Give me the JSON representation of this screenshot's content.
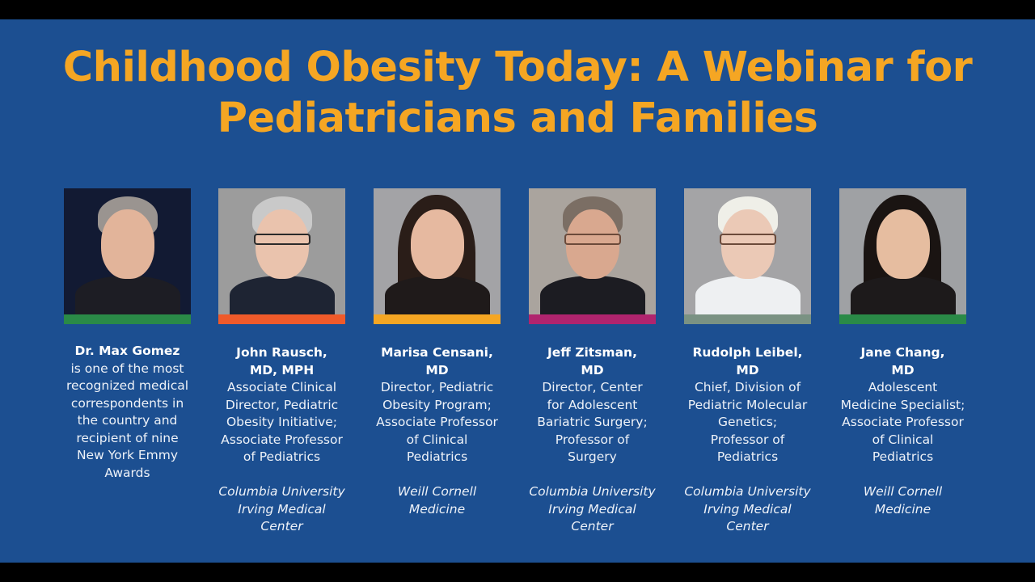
{
  "title": {
    "line1": "Childhood Obesity Today: A Webinar for",
    "line2": "Pediatricians and Families"
  },
  "colors": {
    "background": "#1c4f91",
    "title": "#f5a623",
    "text": "#ffffff"
  },
  "speakers": [
    {
      "name_lines": [
        "Dr. Max Gomez",
        ""
      ],
      "description_lines": [
        "is one of the most",
        "recognized medical",
        "correspondents in",
        "the country and",
        "recipient of nine",
        "New York Emmy",
        "Awards"
      ],
      "institution_lines": [],
      "bar_color": "#2a8a47",
      "photo_bg": "#121a33"
    },
    {
      "name_lines": [
        "John Rausch,",
        "MD, MPH"
      ],
      "description_lines": [
        "Associate Clinical",
        "Director, Pediatric",
        "Obesity Initiative;",
        "Associate Professor",
        "of Pediatrics"
      ],
      "institution_lines": [
        "Columbia University",
        "Irving Medical",
        "Center"
      ],
      "bar_color": "#ef5a2a",
      "photo_bg": "#9c9c9c"
    },
    {
      "name_lines": [
        "Marisa Censani,",
        "MD"
      ],
      "description_lines": [
        "Director, Pediatric",
        "Obesity Program;",
        "Associate Professor",
        "of Clinical",
        "Pediatrics"
      ],
      "institution_lines": [
        "Weill Cornell",
        "Medicine"
      ],
      "bar_color": "#f5a623",
      "photo_bg": "#a3a3a6"
    },
    {
      "name_lines": [
        "Jeff Zitsman,",
        "MD"
      ],
      "description_lines": [
        "Director, Center",
        "for Adolescent",
        "Bariatric Surgery;",
        "Professor of",
        "Surgery"
      ],
      "institution_lines": [
        "Columbia University",
        "Irving Medical",
        "Center"
      ],
      "bar_color": "#b0246e",
      "photo_bg": "#aaa49e"
    },
    {
      "name_lines": [
        "Rudolph Leibel,",
        "MD"
      ],
      "description_lines": [
        "Chief, Division of",
        "Pediatric Molecular",
        "Genetics;",
        "Professor of",
        "Pediatrics"
      ],
      "institution_lines": [
        "Columbia University",
        "Irving Medical",
        "Center"
      ],
      "bar_color": "#7a9283",
      "photo_bg": "#a4a4a6"
    },
    {
      "name_lines": [
        "Jane Chang,",
        "MD"
      ],
      "description_lines": [
        "Adolescent",
        "Medicine Specialist;",
        "Associate Professor",
        "of Clinical",
        "Pediatrics"
      ],
      "institution_lines": [
        "Weill Cornell",
        "Medicine"
      ],
      "bar_color": "#2a8a47",
      "photo_bg": "#9fa1a4"
    }
  ]
}
